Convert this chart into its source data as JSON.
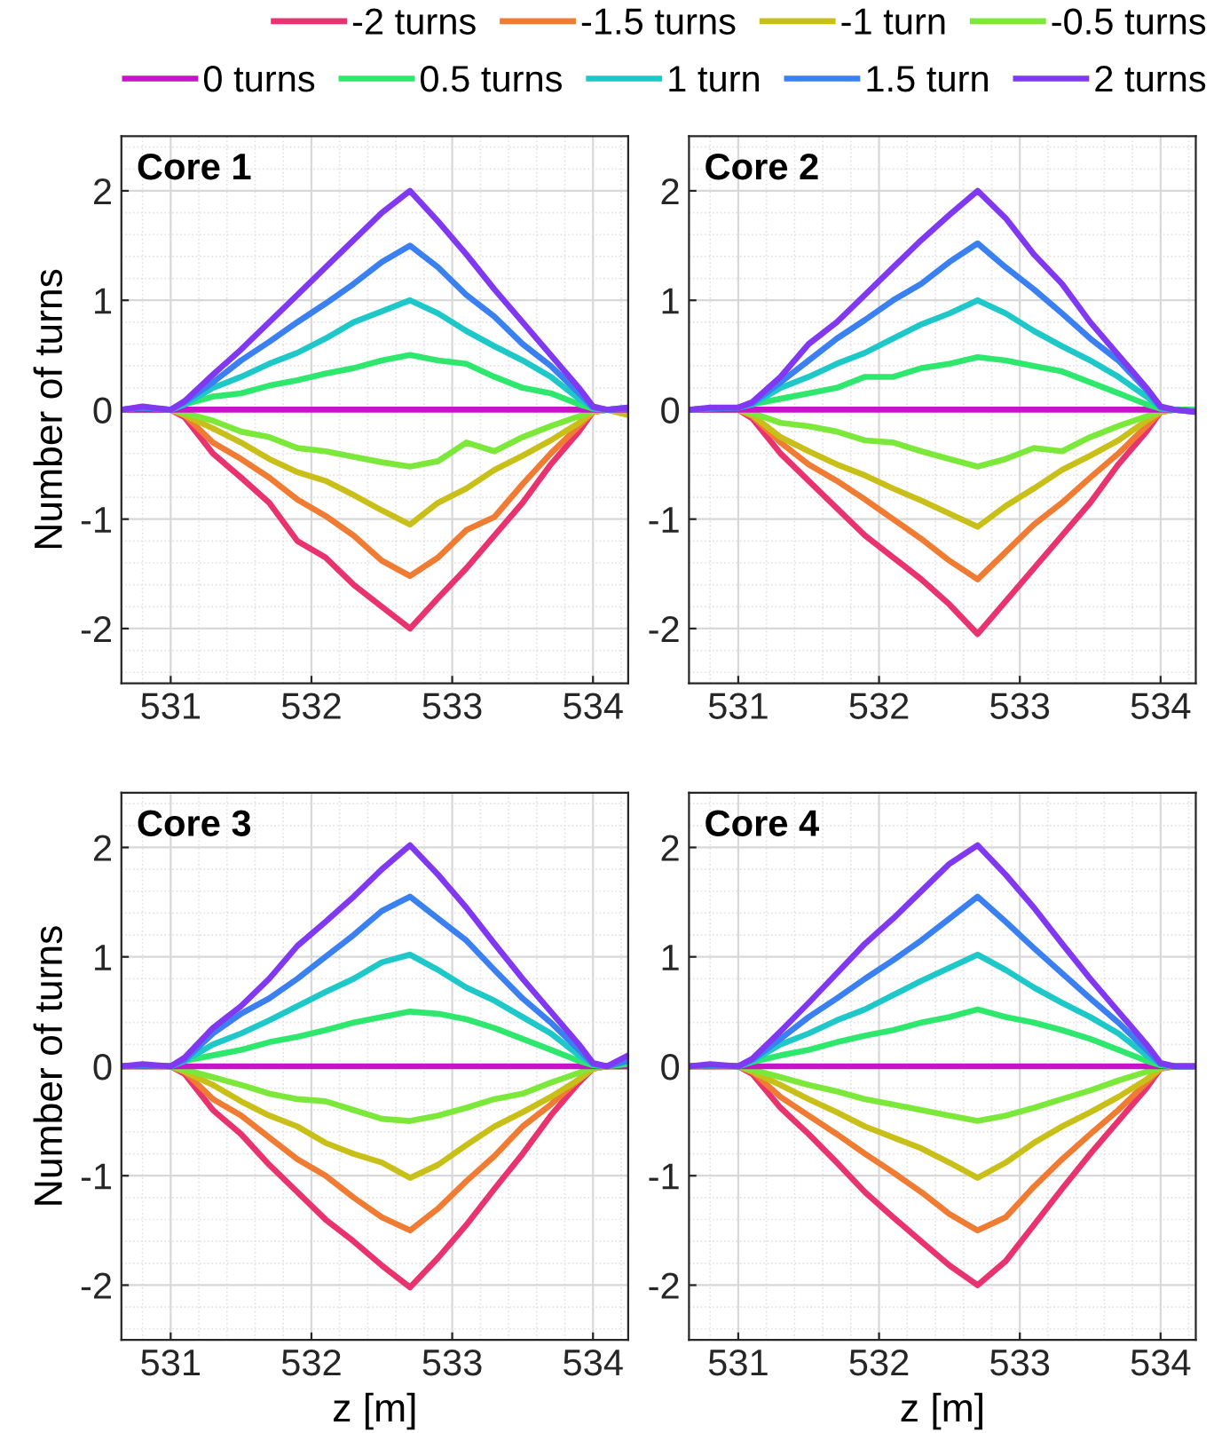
{
  "chart_data": [
    {
      "type": "line",
      "title": "Core 1",
      "ylabel": "Number of turns",
      "legend": "top",
      "grid": true,
      "line_style": "solid",
      "marker": "none",
      "tick_labels": "xy",
      "xlim": [
        530.65,
        534.25
      ],
      "ylim": [
        -2.5,
        2.5
      ],
      "xticks": [
        531,
        532,
        533,
        534
      ],
      "yticks": [
        -2,
        -1,
        0,
        1,
        2
      ],
      "x": [
        530.65,
        530.8,
        531.0,
        531.1,
        531.3,
        531.5,
        531.7,
        531.9,
        532.1,
        532.3,
        532.5,
        532.7,
        532.9,
        533.1,
        533.3,
        533.5,
        533.7,
        533.9,
        534.0,
        534.1,
        534.25
      ],
      "series": [
        {
          "name": "-2 turns",
          "color": "#e8336f",
          "values": [
            0,
            0,
            0,
            -0.07,
            -0.4,
            -0.62,
            -0.85,
            -1.2,
            -1.35,
            -1.6,
            -1.8,
            -2.0,
            -1.72,
            -1.45,
            -1.15,
            -0.85,
            -0.5,
            -0.2,
            -0.02,
            0,
            0
          ]
        },
        {
          "name": "-1.5 turns",
          "color": "#f07b32",
          "values": [
            0,
            0,
            0,
            -0.05,
            -0.3,
            -0.45,
            -0.62,
            -0.82,
            -0.97,
            -1.15,
            -1.38,
            -1.52,
            -1.35,
            -1.1,
            -0.98,
            -0.68,
            -0.4,
            -0.15,
            -0.02,
            0,
            0
          ]
        },
        {
          "name": "-1 turn",
          "color": "#c8c019",
          "values": [
            0,
            0,
            0,
            -0.05,
            -0.17,
            -0.3,
            -0.45,
            -0.57,
            -0.65,
            -0.78,
            -0.92,
            -1.05,
            -0.85,
            -0.72,
            -0.55,
            -0.42,
            -0.28,
            -0.12,
            -0.02,
            0,
            -0.05
          ]
        },
        {
          "name": "-0.5 turns",
          "color": "#7be83a",
          "values": [
            0,
            0,
            0,
            -0.03,
            -0.1,
            -0.2,
            -0.25,
            -0.35,
            -0.38,
            -0.43,
            -0.48,
            -0.52,
            -0.47,
            -0.3,
            -0.38,
            -0.25,
            -0.15,
            -0.06,
            -0.01,
            0,
            0
          ]
        },
        {
          "name": "0 turns",
          "color": "#c814c8",
          "values": [
            0,
            0,
            0,
            0,
            0,
            0,
            0,
            0,
            0,
            0,
            0,
            0,
            0,
            0,
            0,
            0,
            0,
            0,
            0,
            0,
            0
          ]
        },
        {
          "name": "0.5 turns",
          "color": "#2ee86e",
          "values": [
            null,
            null,
            0,
            0.05,
            0.12,
            0.15,
            0.22,
            0.27,
            0.33,
            0.38,
            0.45,
            0.5,
            0.45,
            0.42,
            0.3,
            0.2,
            0.15,
            0.05,
            0.01,
            0,
            0.02
          ]
        },
        {
          "name": "1 turn",
          "color": "#1ec8c8",
          "values": [
            0,
            0.02,
            0,
            0.05,
            0.2,
            0.3,
            0.42,
            0.52,
            0.65,
            0.8,
            0.9,
            1.0,
            0.88,
            0.72,
            0.58,
            0.45,
            0.3,
            0.1,
            0.02,
            0,
            0.02
          ]
        },
        {
          "name": "1.5 turn",
          "color": "#3a80f0",
          "values": [
            0,
            0.02,
            0,
            0.07,
            0.25,
            0.45,
            0.62,
            0.8,
            0.97,
            1.15,
            1.35,
            1.5,
            1.3,
            1.05,
            0.85,
            0.6,
            0.4,
            0.15,
            0.02,
            0,
            0.01
          ]
        },
        {
          "name": "2 turns",
          "color": "#8038f0",
          "values": [
            0,
            0.03,
            0,
            0.08,
            0.32,
            0.55,
            0.8,
            1.05,
            1.3,
            1.55,
            1.8,
            2.0,
            1.72,
            1.42,
            1.1,
            0.8,
            0.5,
            0.2,
            0.03,
            0,
            0.02
          ]
        }
      ]
    },
    {
      "type": "line",
      "title": "Core 2",
      "grid": true,
      "line_style": "solid",
      "marker": "none",
      "tick_labels": "xy",
      "xlim": [
        530.65,
        534.25
      ],
      "ylim": [
        -2.5,
        2.5
      ],
      "xticks": [
        531,
        532,
        533,
        534
      ],
      "yticks": [
        -2,
        -1,
        0,
        1,
        2
      ],
      "x": [
        530.65,
        530.8,
        531.0,
        531.1,
        531.3,
        531.5,
        531.7,
        531.9,
        532.1,
        532.3,
        532.5,
        532.7,
        532.9,
        533.1,
        533.3,
        533.5,
        533.7,
        533.9,
        534.0,
        534.1,
        534.25
      ],
      "series": [
        {
          "color": "#e8336f",
          "values": [
            0,
            0.01,
            0,
            -0.08,
            -0.4,
            -0.65,
            -0.9,
            -1.15,
            -1.35,
            -1.55,
            -1.78,
            -2.05,
            -1.75,
            -1.45,
            -1.15,
            -0.85,
            -0.5,
            -0.2,
            -0.02,
            0,
            0
          ]
        },
        {
          "color": "#f07b32",
          "values": [
            0,
            0.01,
            0,
            -0.06,
            -0.3,
            -0.5,
            -0.65,
            -0.82,
            -1.0,
            -1.18,
            -1.38,
            -1.55,
            -1.3,
            -1.05,
            -0.85,
            -0.62,
            -0.4,
            -0.15,
            -0.02,
            0,
            0
          ]
        },
        {
          "color": "#c8c019",
          "values": [
            0,
            0,
            0,
            -0.05,
            -0.25,
            -0.38,
            -0.5,
            -0.6,
            -0.72,
            -0.83,
            -0.95,
            -1.07,
            -0.88,
            -0.72,
            -0.55,
            -0.42,
            -0.28,
            -0.1,
            -0.02,
            0,
            0
          ]
        },
        {
          "color": "#7be83a",
          "values": [
            0,
            0,
            0,
            -0.03,
            -0.12,
            -0.15,
            -0.2,
            -0.28,
            -0.3,
            -0.38,
            -0.45,
            -0.52,
            -0.45,
            -0.35,
            -0.38,
            -0.25,
            -0.15,
            -0.06,
            -0.01,
            0,
            0
          ]
        },
        {
          "color": "#c814c8",
          "values": [
            0,
            0,
            0,
            0,
            0,
            0,
            0,
            0,
            0,
            0,
            0,
            0,
            0,
            0,
            0,
            0,
            0,
            0,
            0,
            0,
            0
          ]
        },
        {
          "color": "#2ee86e",
          "values": [
            null,
            null,
            0.02,
            0.05,
            0.1,
            0.15,
            0.2,
            0.3,
            0.3,
            0.38,
            0.42,
            0.48,
            0.45,
            0.4,
            0.35,
            0.25,
            0.15,
            0.05,
            0.01,
            0,
            0
          ]
        },
        {
          "color": "#1ec8c8",
          "values": [
            0,
            0.01,
            0.02,
            0.05,
            0.2,
            0.3,
            0.42,
            0.52,
            0.65,
            0.78,
            0.88,
            1.0,
            0.88,
            0.72,
            0.58,
            0.45,
            0.3,
            0.12,
            0.02,
            0,
            -0.02
          ]
        },
        {
          "color": "#3a80f0",
          "values": [
            0,
            0.01,
            0.02,
            0.06,
            0.25,
            0.45,
            0.65,
            0.82,
            1.0,
            1.15,
            1.35,
            1.52,
            1.3,
            1.1,
            0.88,
            0.65,
            0.45,
            0.18,
            0.02,
            0,
            -0.02
          ]
        },
        {
          "color": "#8038f0",
          "values": [
            0,
            0.02,
            0.02,
            0.07,
            0.3,
            0.6,
            0.8,
            1.05,
            1.3,
            1.55,
            1.78,
            2.0,
            1.75,
            1.42,
            1.15,
            0.8,
            0.5,
            0.2,
            0.03,
            0,
            -0.02
          ]
        }
      ]
    },
    {
      "type": "line",
      "title": "Core 3",
      "xlabel": "z [m]",
      "ylabel": "Number of turns",
      "grid": true,
      "line_style": "solid",
      "marker": "none",
      "tick_labels": "xy",
      "xlim": [
        530.65,
        534.25
      ],
      "ylim": [
        -2.5,
        2.5
      ],
      "xticks": [
        531,
        532,
        533,
        534
      ],
      "yticks": [
        -2,
        -1,
        0,
        1,
        2
      ],
      "x": [
        530.65,
        530.8,
        531.0,
        531.1,
        531.3,
        531.5,
        531.7,
        531.9,
        532.1,
        532.3,
        532.5,
        532.7,
        532.9,
        533.1,
        533.3,
        533.5,
        533.7,
        533.9,
        534.0,
        534.1,
        534.25
      ],
      "series": [
        {
          "color": "#e8336f",
          "values": [
            0,
            0,
            0,
            -0.07,
            -0.4,
            -0.62,
            -0.9,
            -1.15,
            -1.4,
            -1.6,
            -1.82,
            -2.02,
            -1.75,
            -1.45,
            -1.12,
            -0.8,
            -0.45,
            -0.15,
            -0.02,
            0,
            0
          ]
        },
        {
          "color": "#f07b32",
          "values": [
            0,
            0,
            0,
            -0.05,
            -0.3,
            -0.45,
            -0.65,
            -0.85,
            -1.0,
            -1.2,
            -1.38,
            -1.5,
            -1.3,
            -1.05,
            -0.82,
            -0.55,
            -0.35,
            -0.12,
            -0.02,
            0,
            0
          ]
        },
        {
          "color": "#c8c019",
          "values": [
            0,
            0,
            0,
            -0.05,
            -0.17,
            -0.32,
            -0.45,
            -0.55,
            -0.7,
            -0.8,
            -0.88,
            -1.02,
            -0.9,
            -0.72,
            -0.55,
            -0.42,
            -0.28,
            -0.12,
            -0.02,
            0,
            0
          ]
        },
        {
          "color": "#7be83a",
          "values": [
            0,
            0,
            0,
            -0.03,
            -0.1,
            -0.17,
            -0.25,
            -0.3,
            -0.32,
            -0.4,
            -0.48,
            -0.5,
            -0.45,
            -0.38,
            -0.3,
            -0.25,
            -0.15,
            -0.06,
            -0.01,
            0,
            0
          ]
        },
        {
          "color": "#c814c8",
          "values": [
            0,
            0,
            0,
            0,
            0,
            0,
            0,
            0,
            0,
            0,
            0,
            0,
            0,
            0,
            0,
            0,
            0,
            0,
            0,
            0,
            0
          ]
        },
        {
          "color": "#2ee86e",
          "values": [
            null,
            null,
            0,
            0.05,
            0.1,
            0.15,
            0.22,
            0.27,
            0.33,
            0.4,
            0.45,
            0.5,
            0.48,
            0.43,
            0.35,
            0.25,
            0.15,
            0.05,
            0.01,
            0,
            0.02
          ]
        },
        {
          "color": "#1ec8c8",
          "values": [
            0,
            0.01,
            0,
            0.05,
            0.2,
            0.3,
            0.42,
            0.55,
            0.68,
            0.8,
            0.95,
            1.02,
            0.88,
            0.72,
            0.6,
            0.45,
            0.3,
            0.1,
            0.02,
            0,
            0.05
          ]
        },
        {
          "color": "#3a80f0",
          "values": [
            0,
            0.01,
            0,
            0.06,
            0.3,
            0.48,
            0.62,
            0.8,
            1.0,
            1.2,
            1.42,
            1.55,
            1.35,
            1.15,
            0.88,
            0.62,
            0.4,
            0.15,
            0.02,
            0,
            0.05
          ]
        },
        {
          "color": "#8038f0",
          "values": [
            0,
            0.02,
            0,
            0.08,
            0.35,
            0.55,
            0.8,
            1.1,
            1.32,
            1.55,
            1.8,
            2.02,
            1.75,
            1.45,
            1.12,
            0.8,
            0.5,
            0.2,
            0.03,
            0,
            0.1
          ]
        }
      ]
    },
    {
      "type": "line",
      "title": "Core 4",
      "xlabel": "z [m]",
      "grid": true,
      "line_style": "solid",
      "marker": "none",
      "tick_labels": "xy",
      "xlim": [
        530.65,
        534.25
      ],
      "ylim": [
        -2.5,
        2.5
      ],
      "xticks": [
        531,
        532,
        533,
        534
      ],
      "yticks": [
        -2,
        -1,
        0,
        1,
        2
      ],
      "x": [
        530.65,
        530.8,
        531.0,
        531.1,
        531.3,
        531.5,
        531.7,
        531.9,
        532.1,
        532.3,
        532.5,
        532.7,
        532.9,
        533.1,
        533.3,
        533.5,
        533.7,
        533.9,
        534.0,
        534.1,
        534.25
      ],
      "series": [
        {
          "color": "#e8336f",
          "values": [
            0,
            0,
            0,
            -0.07,
            -0.38,
            -0.62,
            -0.88,
            -1.15,
            -1.38,
            -1.6,
            -1.82,
            -2.0,
            -1.78,
            -1.45,
            -1.12,
            -0.8,
            -0.5,
            -0.2,
            -0.02,
            0,
            0
          ]
        },
        {
          "color": "#f07b32",
          "values": [
            0,
            0,
            0,
            -0.05,
            -0.28,
            -0.45,
            -0.62,
            -0.8,
            -0.97,
            -1.15,
            -1.35,
            -1.5,
            -1.38,
            -1.1,
            -0.85,
            -0.62,
            -0.4,
            -0.15,
            -0.02,
            0,
            0
          ]
        },
        {
          "color": "#c8c019",
          "values": [
            0,
            0,
            0,
            -0.05,
            -0.17,
            -0.3,
            -0.42,
            -0.55,
            -0.65,
            -0.75,
            -0.88,
            -1.02,
            -0.88,
            -0.7,
            -0.55,
            -0.42,
            -0.28,
            -0.12,
            -0.02,
            0,
            0
          ]
        },
        {
          "color": "#7be83a",
          "values": [
            0,
            0,
            0,
            -0.03,
            -0.1,
            -0.17,
            -0.23,
            -0.3,
            -0.35,
            -0.4,
            -0.45,
            -0.5,
            -0.45,
            -0.38,
            -0.3,
            -0.22,
            -0.13,
            -0.05,
            -0.01,
            0,
            0
          ]
        },
        {
          "color": "#c814c8",
          "values": [
            0,
            0,
            0,
            0,
            0,
            0,
            0,
            0,
            0,
            0,
            0,
            0,
            0,
            0,
            0,
            0,
            0,
            0,
            0,
            0,
            0
          ]
        },
        {
          "color": "#2ee86e",
          "values": [
            0,
            0.01,
            0,
            0.04,
            0.1,
            0.15,
            0.22,
            0.28,
            0.33,
            0.4,
            0.45,
            0.52,
            0.45,
            0.4,
            0.33,
            0.25,
            0.15,
            0.05,
            0.01,
            0,
            0
          ]
        },
        {
          "color": "#1ec8c8",
          "values": [
            0,
            0.01,
            0,
            0.05,
            0.2,
            0.3,
            0.42,
            0.52,
            0.65,
            0.78,
            0.9,
            1.02,
            0.88,
            0.72,
            0.58,
            0.45,
            0.3,
            0.1,
            0.02,
            0,
            0
          ]
        },
        {
          "color": "#3a80f0",
          "values": [
            0,
            0.01,
            0,
            0.06,
            0.25,
            0.45,
            0.62,
            0.8,
            0.97,
            1.15,
            1.35,
            1.55,
            1.32,
            1.08,
            0.85,
            0.62,
            0.4,
            0.15,
            0.02,
            0,
            0
          ]
        },
        {
          "color": "#8038f0",
          "values": [
            0,
            0.02,
            0,
            0.07,
            0.32,
            0.58,
            0.85,
            1.12,
            1.35,
            1.6,
            1.85,
            2.02,
            1.75,
            1.45,
            1.12,
            0.8,
            0.5,
            0.2,
            0.03,
            0,
            0
          ]
        }
      ]
    }
  ]
}
